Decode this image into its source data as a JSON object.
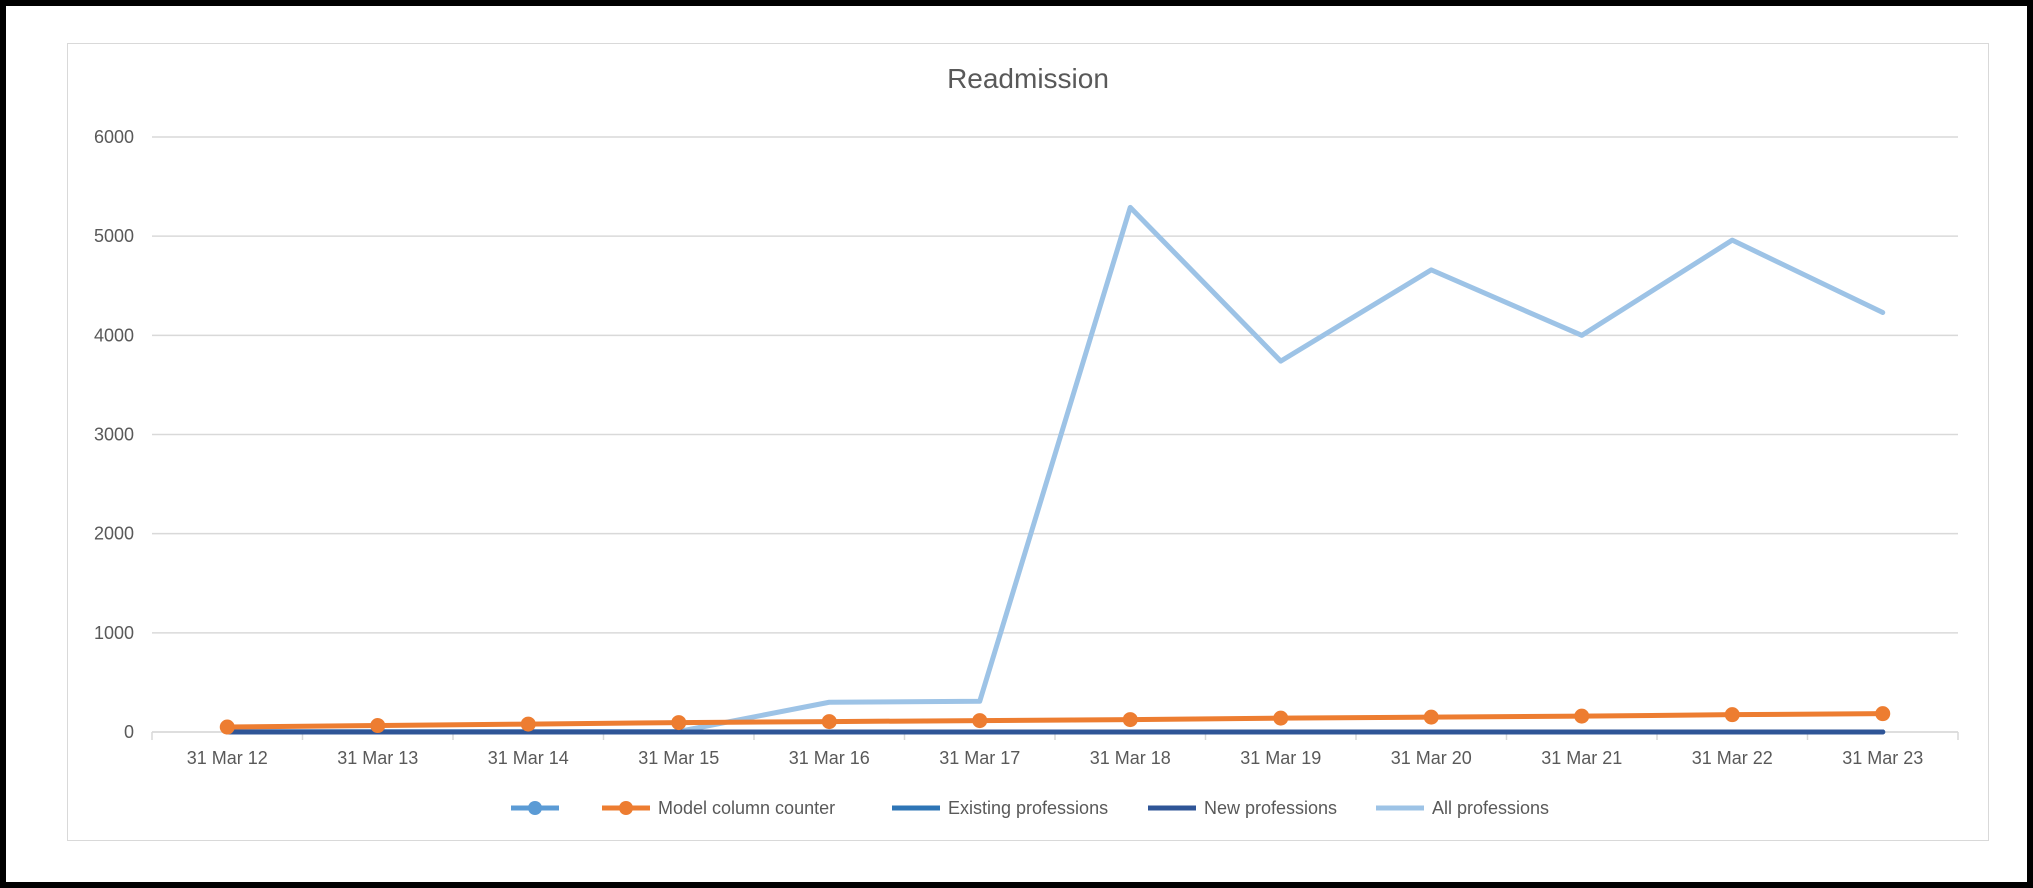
{
  "chart_data": {
    "type": "line",
    "title": "Readmission",
    "xlabel": "",
    "ylabel": "",
    "categories": [
      "31 Mar 12",
      "31 Mar 13",
      "31 Mar 14",
      "31 Mar 15",
      "31 Mar 16",
      "31 Mar 17",
      "31 Mar 18",
      "31 Mar 19",
      "31 Mar 20",
      "31 Mar 21",
      "31 Mar 22",
      "31 Mar 23"
    ],
    "ylim": [
      0,
      6000
    ],
    "yticks": [
      0,
      1000,
      2000,
      3000,
      4000,
      5000,
      6000
    ],
    "grid": true,
    "legend_position": "bottom",
    "series": [
      {
        "name": "",
        "color": "#5b9bd5",
        "marker": true,
        "values": [
          null,
          null,
          null,
          null,
          null,
          null,
          null,
          null,
          null,
          null,
          null,
          null
        ]
      },
      {
        "name": "Model column counter",
        "color": "#ed7d31",
        "marker": true,
        "values": [
          50,
          65,
          80,
          95,
          105,
          115,
          125,
          140,
          150,
          160,
          175,
          185
        ]
      },
      {
        "name": "Existing professions",
        "color": "#2e75b6",
        "marker": false,
        "values": [
          0,
          0,
          0,
          0,
          0,
          0,
          0,
          0,
          0,
          0,
          0,
          0
        ]
      },
      {
        "name": "New professions",
        "color": "#2f5597",
        "marker": false,
        "values": [
          0,
          0,
          0,
          0,
          0,
          0,
          0,
          0,
          0,
          0,
          0,
          0
        ]
      },
      {
        "name": "All professions",
        "color": "#9dc3e6",
        "marker": false,
        "values": [
          5,
          5,
          5,
          5,
          300,
          310,
          5290,
          3740,
          4660,
          4000,
          4960,
          4230
        ]
      }
    ]
  }
}
